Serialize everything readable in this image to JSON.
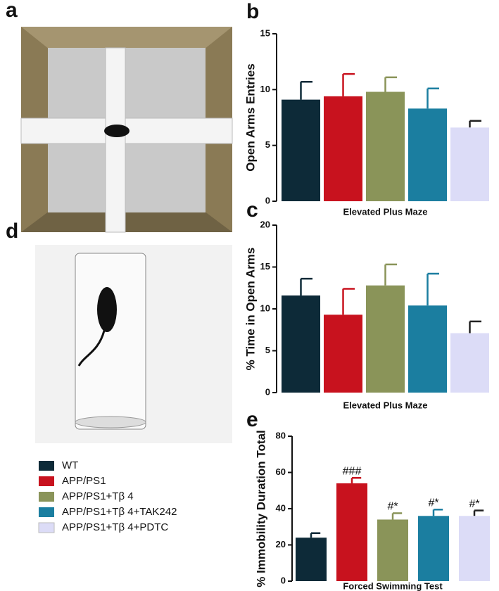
{
  "photo_panels": [
    "a",
    "d"
  ],
  "legend": {
    "names": [
      "WT",
      "APP/PS1",
      "APP/PS1+Tβ 4",
      "APP/PS1+Tβ 4+TAK242",
      "APP/PS1+Tβ 4+PDTC"
    ],
    "colors": [
      "#0d2a38",
      "#c8121e",
      "#8a9459",
      "#1b7ea0",
      "#dcdcf7"
    ]
  },
  "chart_data": [
    {
      "type": "bar",
      "panel_label": "b",
      "y_label": "Open Arms Entries",
      "x_label": "Elevated Plus Maze",
      "values": [
        9.1,
        9.4,
        9.8,
        8.3,
        6.6
      ],
      "errors": [
        1.6,
        2.0,
        1.3,
        1.8,
        0.6
      ],
      "ylim": [
        0,
        15
      ],
      "yticks": [
        0,
        5,
        10,
        15
      ]
    },
    {
      "type": "bar",
      "panel_label": "c",
      "y_label": "% Time in Open Arms",
      "x_label": "Elevated Plus Maze",
      "values": [
        11.6,
        9.3,
        12.8,
        10.4,
        7.1
      ],
      "errors": [
        2.0,
        3.1,
        2.5,
        3.8,
        1.4
      ],
      "ylim": [
        0,
        20
      ],
      "yticks": [
        0,
        5,
        10,
        15,
        20
      ]
    },
    {
      "type": "bar",
      "panel_label": "e",
      "y_label": "% Immobility Duration Total",
      "x_label": "Forced Swimming Test",
      "values": [
        24,
        54,
        34,
        36,
        36
      ],
      "errors": [
        2.5,
        3,
        3.5,
        3.5,
        3
      ],
      "annotations": [
        null,
        "###",
        "#*",
        "#*",
        "#*"
      ],
      "ylim": [
        0,
        80
      ],
      "yticks": [
        0,
        20,
        40,
        60,
        80
      ]
    }
  ]
}
